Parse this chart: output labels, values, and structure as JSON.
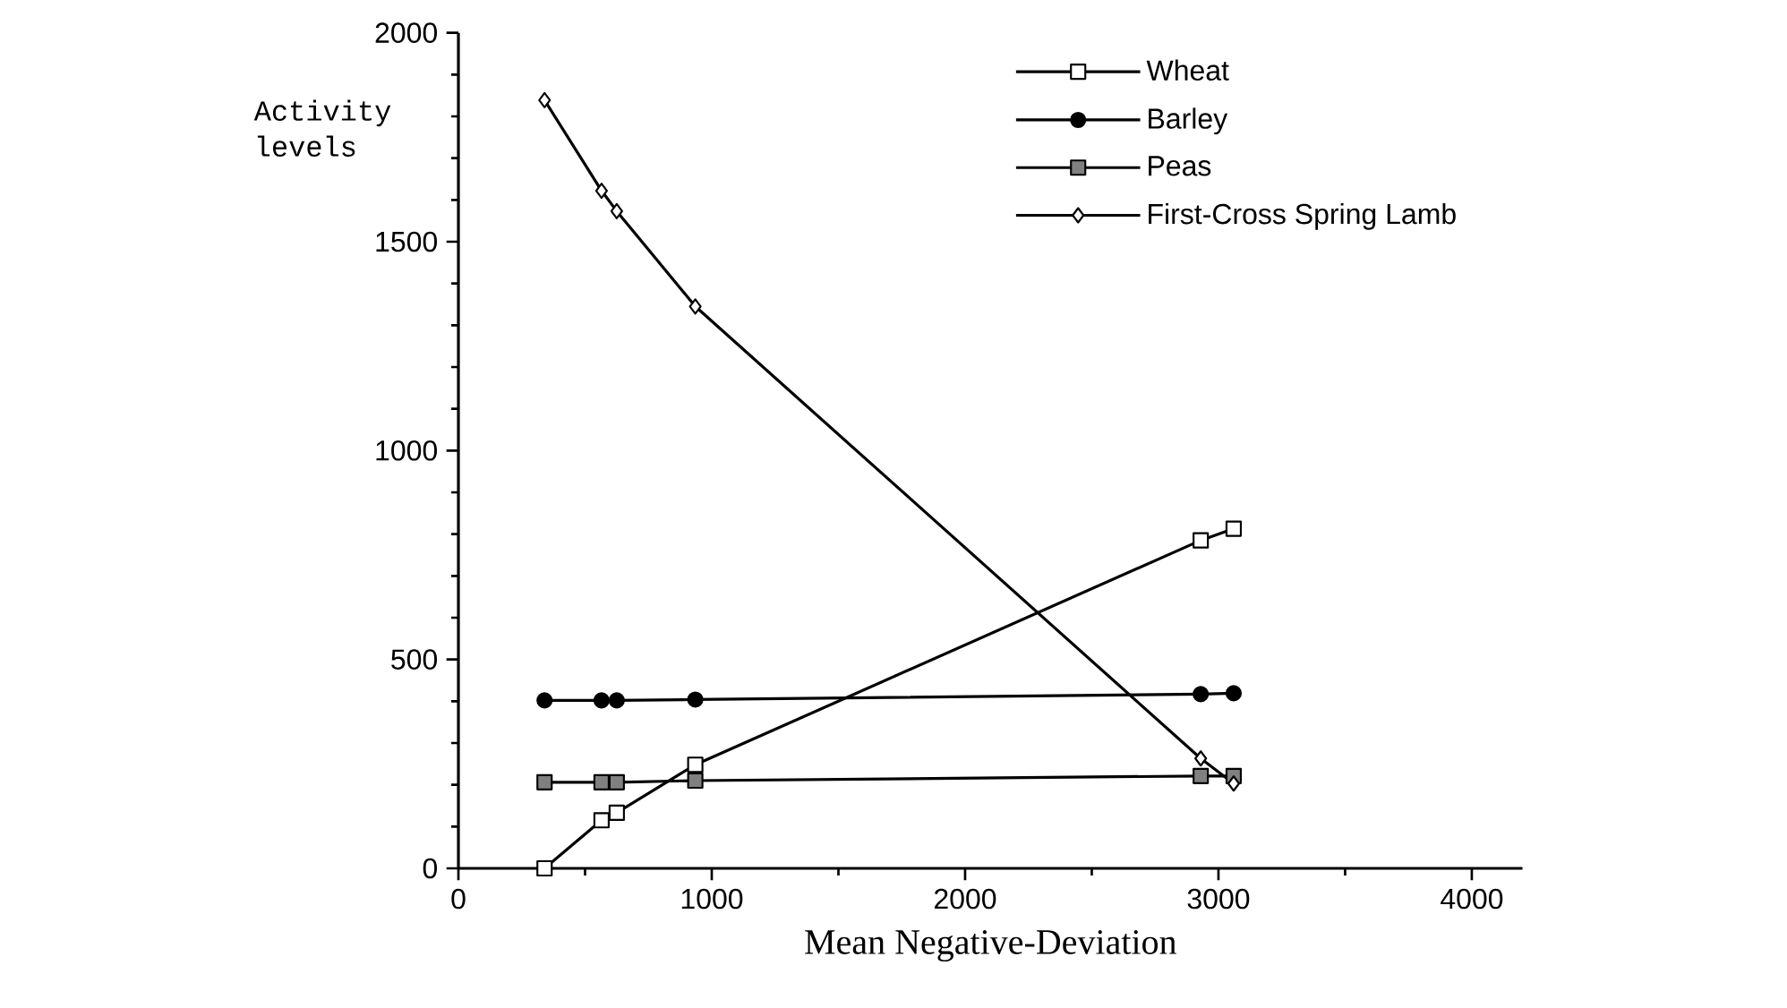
{
  "chart_data": {
    "type": "line",
    "xlabel": "Mean Negative-Deviation",
    "ylabel": "Activity levels",
    "xlim": [
      0,
      4200
    ],
    "ylim": [
      0,
      2000
    ],
    "xticks": [
      0,
      1000,
      2000,
      3000,
      4000
    ],
    "yticks": [
      0,
      500,
      1000,
      1500,
      2000
    ],
    "legend": "top right",
    "grid": false,
    "series": [
      {
        "name": "Wheat",
        "color": "#000000",
        "marker": "square",
        "x": [
          340,
          565,
          625,
          935,
          2930,
          3060
        ],
        "values": [
          0,
          115,
          133,
          248,
          785,
          813
        ]
      },
      {
        "name": "Barley",
        "color": "#000000",
        "marker": "circle",
        "x": [
          340,
          565,
          625,
          935,
          2930,
          3060
        ],
        "values": [
          402,
          402,
          402,
          404,
          417,
          419
        ]
      },
      {
        "name": "Peas",
        "color": "#000000",
        "marker": "square",
        "x": [
          340,
          565,
          625,
          935,
          2930,
          3060
        ],
        "values": [
          206,
          206,
          206,
          210,
          221,
          221
        ]
      },
      {
        "name": "First-Cross Spring Lamb",
        "color": "#000000",
        "marker": "diamond",
        "x": [
          340,
          565,
          625,
          935,
          2930,
          3060
        ],
        "values": [
          1839,
          1622,
          1573,
          1345,
          263,
          203
        ]
      }
    ]
  }
}
